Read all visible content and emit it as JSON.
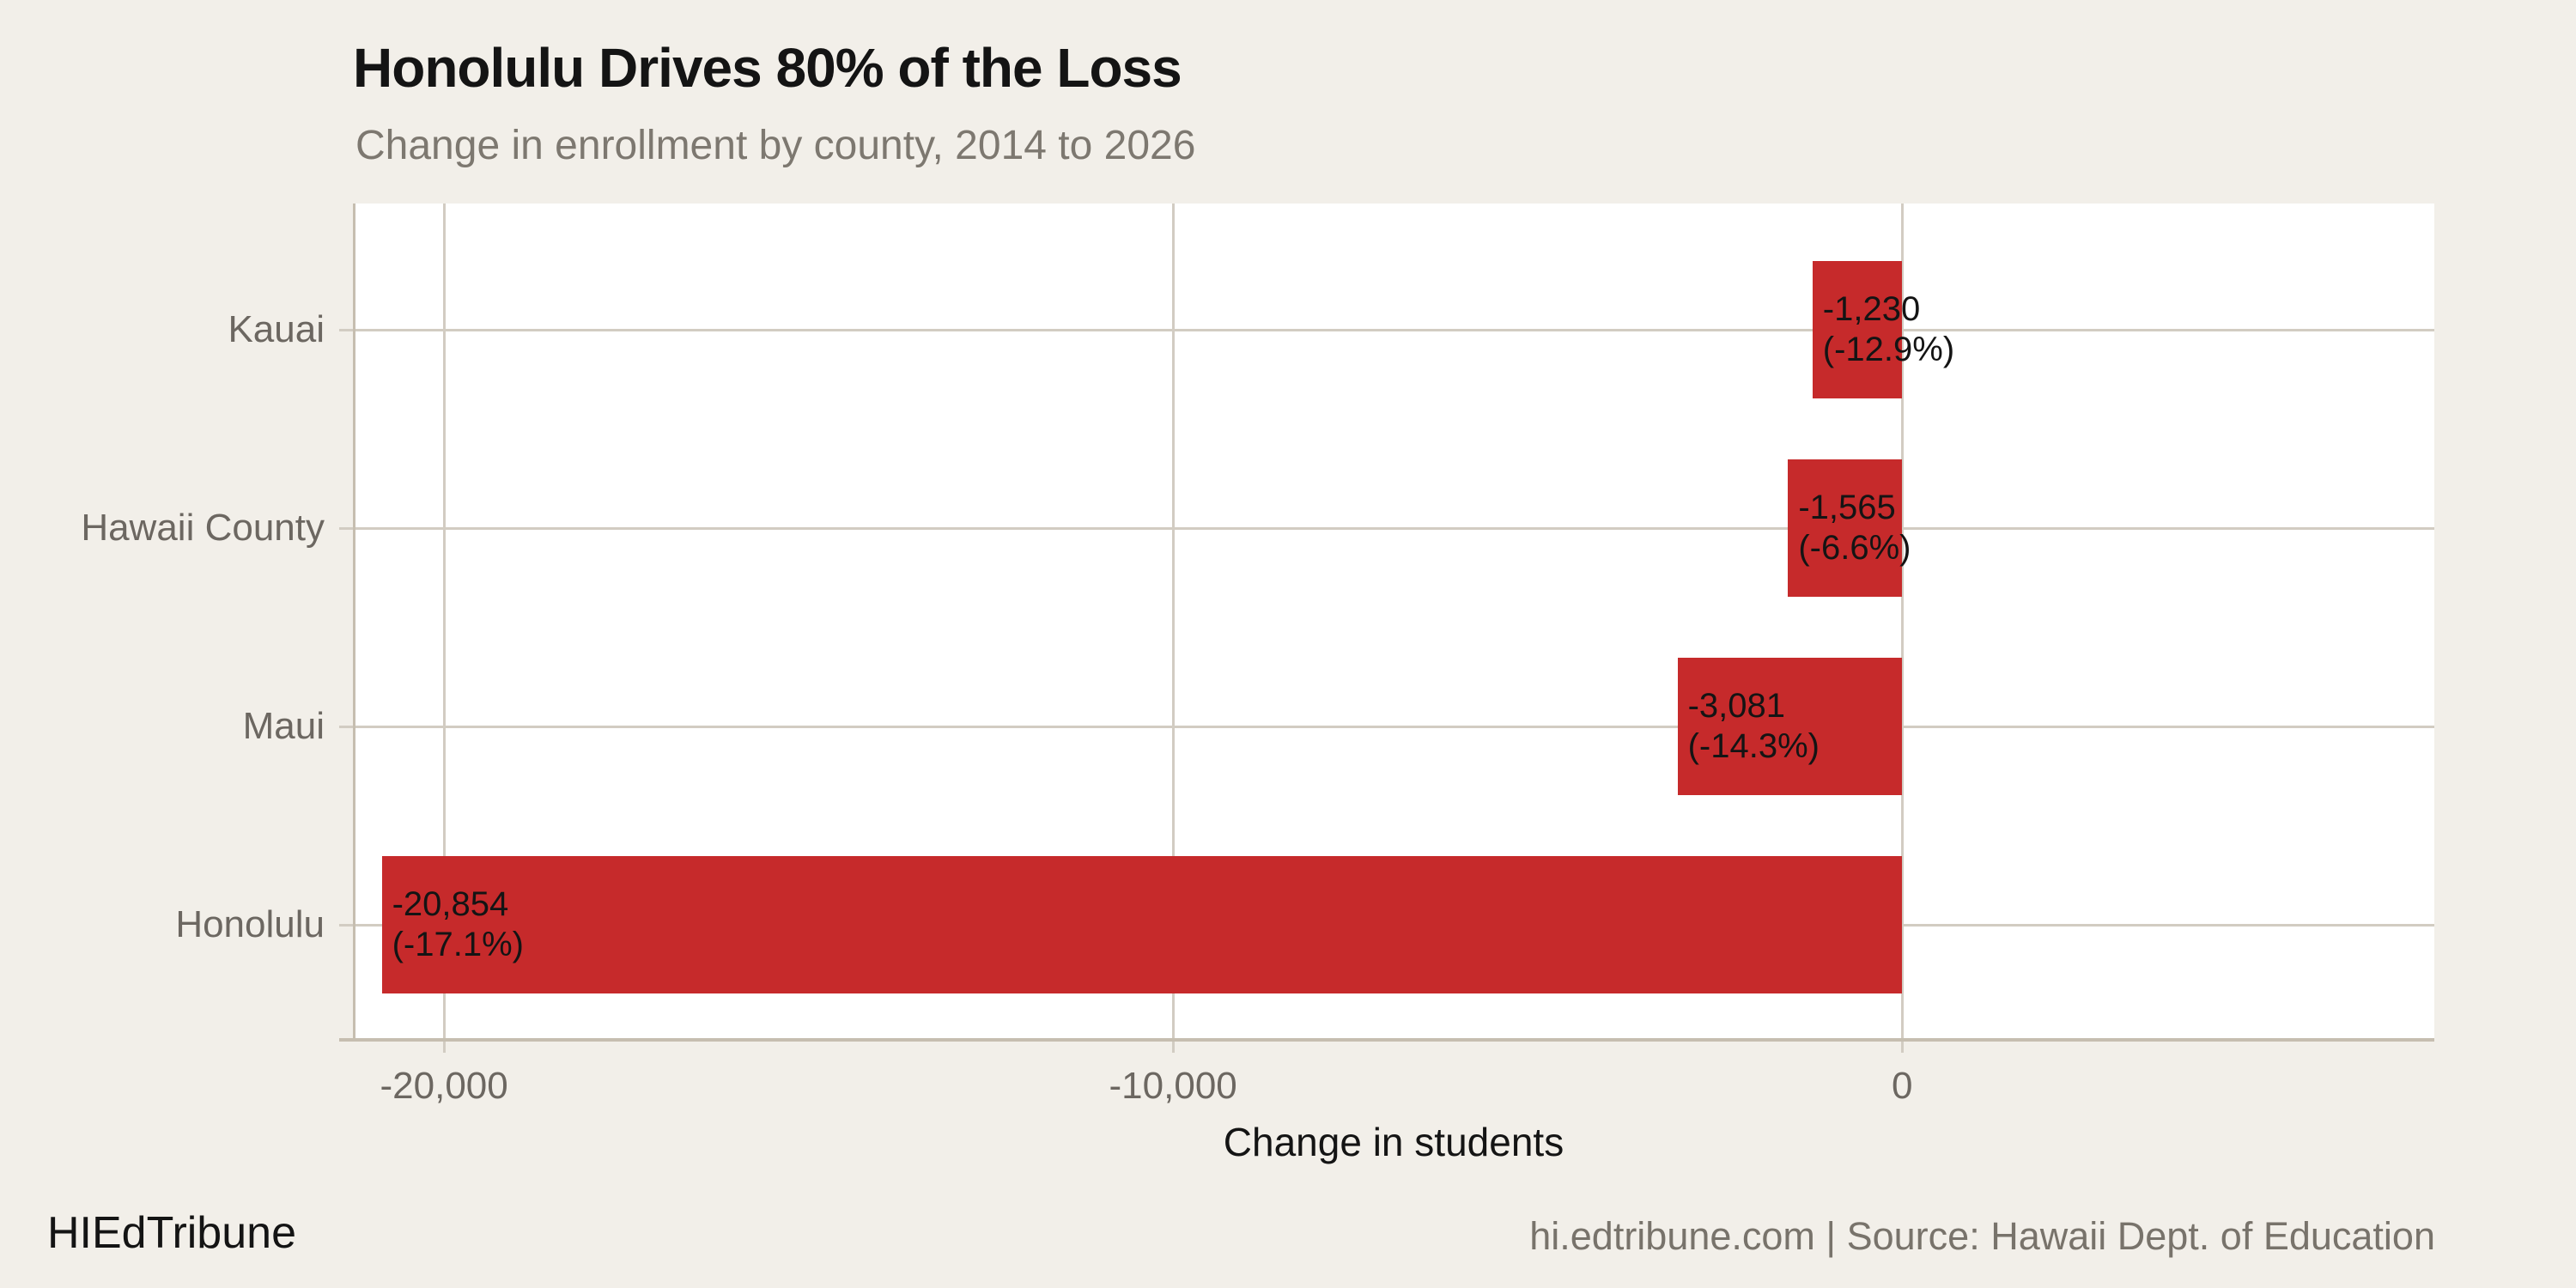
{
  "header": {
    "title": "Honolulu Drives 80% of the Loss",
    "subtitle": "Change in enrollment by county, 2014 to 2026"
  },
  "chart_data": {
    "type": "bar",
    "orientation": "horizontal",
    "title": "Honolulu Drives 80% of the Loss",
    "subtitle": "Change in enrollment by county, 2014 to 2026",
    "categories": [
      "Kauai",
      "Hawaii County",
      "Maui",
      "Honolulu"
    ],
    "values": [
      -1230,
      -1565,
      -3081,
      -20854
    ],
    "percent_change": [
      -12.9,
      -6.6,
      -14.3,
      -17.1
    ],
    "bar_labels": [
      [
        "-1,230",
        "(-12.9%)"
      ],
      [
        "-1,565",
        "(-6.6%)"
      ],
      [
        "-3,081",
        "(-14.3%)"
      ],
      [
        "-20,854",
        "(-17.1%)"
      ]
    ],
    "xlabel": "Change in students",
    "ylabel": "",
    "x_ticks": [
      {
        "value": -20000,
        "label": "-20,000"
      },
      {
        "value": -10000,
        "label": "-10,000"
      },
      {
        "value": 0,
        "label": "0"
      }
    ],
    "xlim": [
      -21250,
      7300
    ],
    "grid": true,
    "legend": "none",
    "bar_color": "#C62A2B"
  },
  "footer": {
    "brand": "HIEdTribune",
    "source": "hi.edtribune.com | Source: Hawaii Dept. of Education"
  },
  "colors": {
    "background": "#F2EFE9",
    "plot_background": "#FFFFFF",
    "gridline": "#D2CCC2",
    "axis_line": "#C6BEB0",
    "bar": "#C62A2B",
    "text_dark": "#141414",
    "axis_text_gray": "#6C6761",
    "subtitle_gray": "#7D7870",
    "source_gray": "#78736B"
  }
}
